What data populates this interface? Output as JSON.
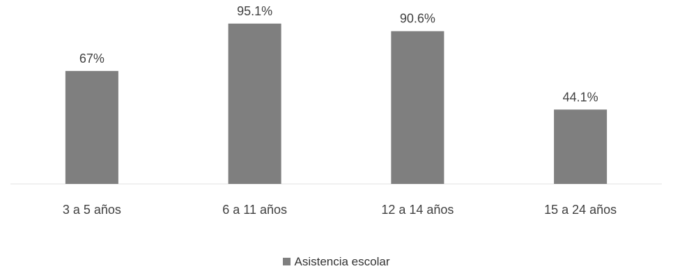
{
  "chart_data": {
    "type": "bar",
    "categories": [
      "3 a 5 años",
      "6 a 11 años",
      "12 a 14 años",
      "15 a 24 años"
    ],
    "series": [
      {
        "name": "Asistencia escolar",
        "values": [
          67,
          95.1,
          90.6,
          44.1
        ]
      }
    ],
    "data_labels": [
      "67%",
      "95.1%",
      "90.6%",
      "44.1%"
    ],
    "ylim": [
      0,
      100
    ],
    "grid": false,
    "legend": "bottom",
    "bar_color": "#7f7f7f"
  }
}
